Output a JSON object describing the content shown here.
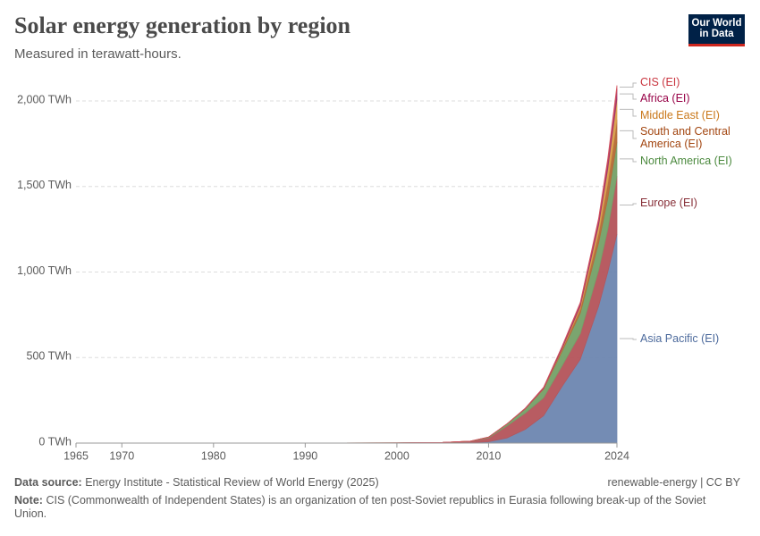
{
  "chart_data": {
    "type": "stacked_area",
    "title": "Solar energy generation by region",
    "subtitle": "Measured in terawatt-hours.",
    "logo": "Our World in Data",
    "source_label": "Data source:",
    "source": "Energy Institute - Statistical Review of World Energy (2025)",
    "license": "renewable-energy | CC BY",
    "note_label": "Note:",
    "note": "CIS (Commonwealth of Independent States) is an organization of ten post-Soviet republics in Eurasia following break-up of the Soviet Union.",
    "x": [
      1965,
      1970,
      1980,
      1990,
      2000,
      2005,
      2008,
      2010,
      2012,
      2014,
      2016,
      2018,
      2020,
      2022,
      2023,
      2024
    ],
    "xlim": [
      1965,
      2024
    ],
    "xticks": [
      1965,
      1970,
      1980,
      1990,
      2000,
      2010,
      2024
    ],
    "ylim": [
      0,
      2000
    ],
    "yticks": [
      {
        "value": 0,
        "label": "0 TWh"
      },
      {
        "value": 500,
        "label": "500 TWh"
      },
      {
        "value": 1000,
        "label": "1,000 TWh"
      },
      {
        "value": 1500,
        "label": "1,500 TWh"
      },
      {
        "value": 2000,
        "label": "2,000 TWh"
      }
    ],
    "grid": true,
    "series": [
      {
        "name": "Asia Pacific (EI)",
        "color": "#6d86b0",
        "label_color": "#4c6a9c",
        "values": [
          0,
          0,
          0,
          0,
          0.5,
          2,
          3,
          8,
          30,
          80,
          160,
          330,
          490,
          800,
          1000,
          1222
        ]
      },
      {
        "name": "Europe (EI)",
        "color": "#b5545a",
        "label_color": "#883039",
        "values": [
          0,
          0,
          0,
          0,
          0.1,
          1.5,
          7,
          23,
          70,
          95,
          105,
          120,
          150,
          210,
          250,
          339
        ]
      },
      {
        "name": "North America (EI)",
        "color": "#74a168",
        "label_color": "#4c8a3f",
        "values": [
          0,
          0,
          0,
          0,
          0.5,
          0.6,
          1,
          4,
          11,
          25,
          50,
          85,
          120,
          160,
          180,
          200
        ]
      },
      {
        "name": "South and Central America (EI)",
        "color": "#b56a35",
        "label_color": "#a2450f",
        "values": [
          0,
          0,
          0,
          0,
          0,
          0,
          0,
          0,
          0.5,
          1,
          3,
          12,
          25,
          60,
          95,
          130
        ]
      },
      {
        "name": "Middle East (EI)",
        "color": "#d9a04a",
        "label_color": "#c9781a",
        "values": [
          0,
          0,
          0,
          0,
          0,
          0,
          0,
          0,
          0.2,
          0.5,
          2,
          5,
          15,
          45,
          80,
          120
        ]
      },
      {
        "name": "Africa (EI)",
        "color": "#a3306a",
        "label_color": "#970046",
        "values": [
          0,
          0,
          0,
          0,
          0,
          0,
          0,
          0,
          0.5,
          2,
          5,
          10,
          17,
          30,
          45,
          60
        ]
      },
      {
        "name": "CIS (EI)",
        "color": "#d4525c",
        "label_color": "#c9353f",
        "values": [
          0,
          0,
          0,
          0,
          0,
          0,
          0,
          0,
          0.1,
          0.5,
          1,
          2,
          5,
          10,
          15,
          20
        ]
      }
    ]
  }
}
